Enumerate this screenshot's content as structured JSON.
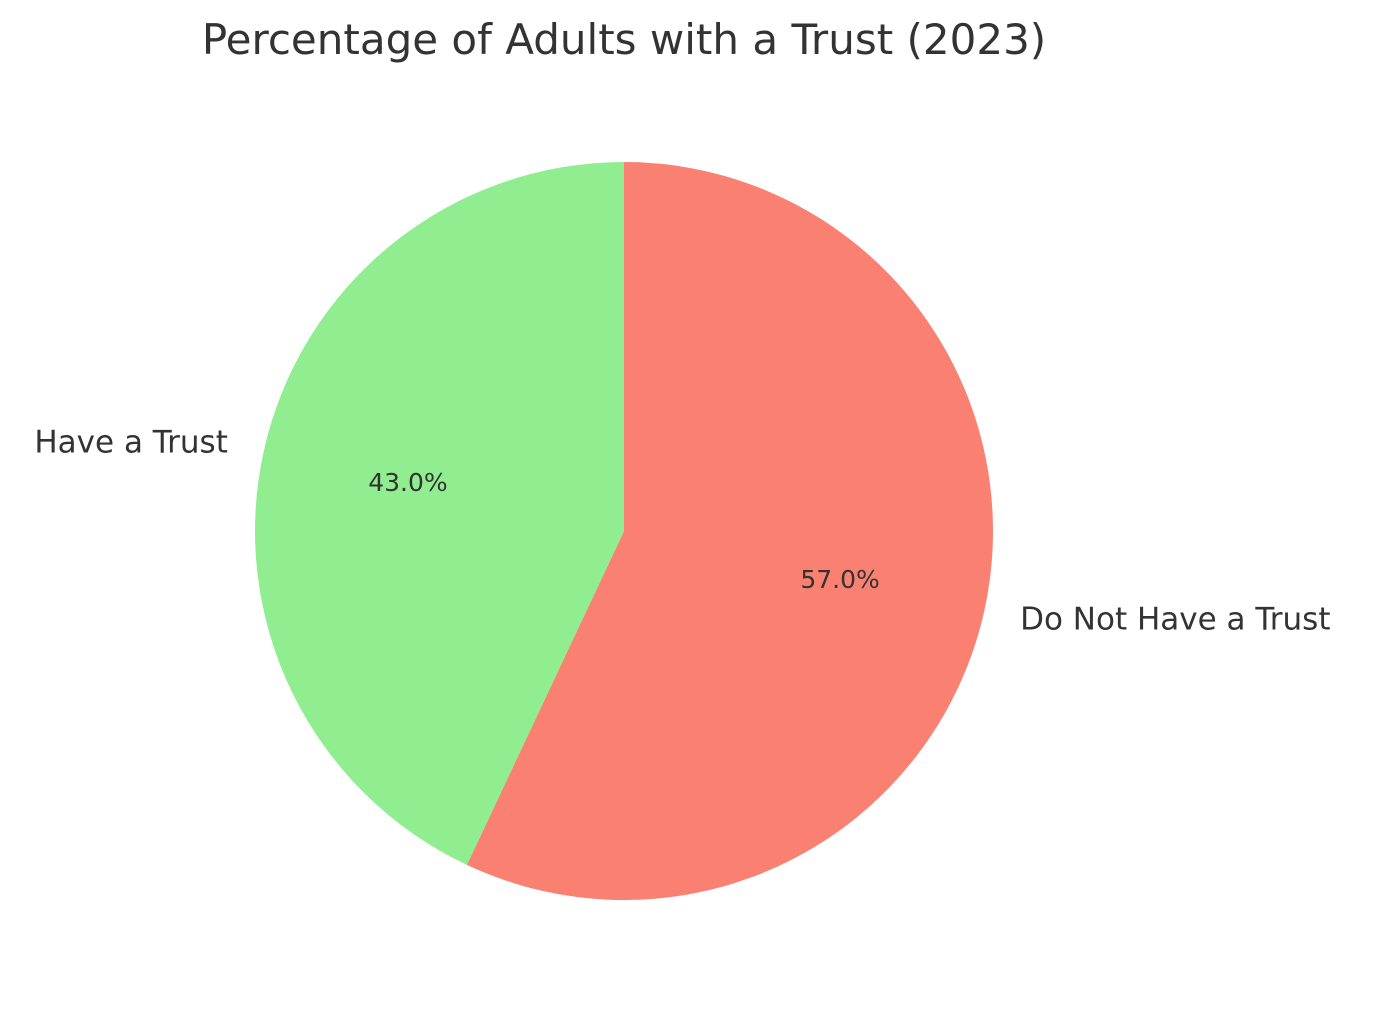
{
  "chart_data": {
    "type": "pie",
    "title": "Percentage of Adults with a Trust (2023)",
    "start_angle_deg": 90,
    "direction": "clockwise",
    "slices": [
      {
        "label": "Do Not Have a Trust",
        "value": 57.0,
        "pct_label": "57.0%",
        "color": "#fa8072"
      },
      {
        "label": "Have a Trust",
        "value": 43.0,
        "pct_label": "43.0%",
        "color": "#90ee90"
      }
    ]
  }
}
